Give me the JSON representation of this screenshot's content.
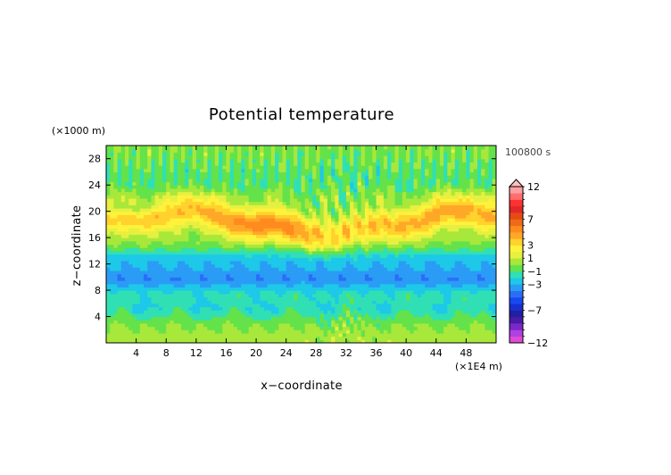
{
  "chart_data": {
    "type": "heatmap",
    "title": "Potential temperature",
    "time_label": "100800 s",
    "xlabel": "x−coordinate",
    "ylabel": "z−coordinate",
    "x_unit": "(×1E4 m)",
    "y_unit": "(×1000 m)",
    "xlim": [
      0,
      52
    ],
    "ylim": [
      0,
      30
    ],
    "x_ticks": [
      4,
      8,
      12,
      16,
      20,
      24,
      28,
      32,
      36,
      40,
      44,
      48
    ],
    "y_ticks": [
      4,
      8,
      12,
      16,
      20,
      24,
      28
    ],
    "colorbar": {
      "levels": [
        -12,
        -11,
        -10,
        -9,
        -8,
        -7,
        -6,
        -5,
        -4,
        -3,
        -2,
        -1,
        0,
        1,
        2,
        3,
        4,
        5,
        6,
        7,
        8,
        9,
        10,
        11,
        12
      ],
      "labels": [
        "12",
        "7",
        "3",
        "1",
        "−1",
        "−3",
        "−7",
        "−12"
      ],
      "label_values": [
        12,
        7,
        3,
        1,
        -1,
        -3,
        -7,
        -12
      ],
      "colors_low_to_high": [
        "#ff1ab8",
        "#e04ad8",
        "#b040e0",
        "#7a28c8",
        "#4a1aa8",
        "#2020a0",
        "#1830d0",
        "#1848f0",
        "#2a6ef8",
        "#2a9cf5",
        "#1ec8e8",
        "#30e0b4",
        "#64e24a",
        "#a8e83a",
        "#e6f040",
        "#fff23a",
        "#ffd22c",
        "#ffa828",
        "#ff8a1e",
        "#f06a1a",
        "#e84a14",
        "#e02828",
        "#ff3030",
        "#ff6e6e",
        "#ffa0a0",
        "#ffc0c0"
      ]
    },
    "field_description_levels": {
      "z_0_2": 0.5,
      "z_2_5": 0,
      "z_5_7": -1.5,
      "z_8_11": -3.5,
      "z_12_15": -0.5,
      "z_16_20": 3,
      "z_20_24": 1,
      "z_24_30": 0
    }
  }
}
